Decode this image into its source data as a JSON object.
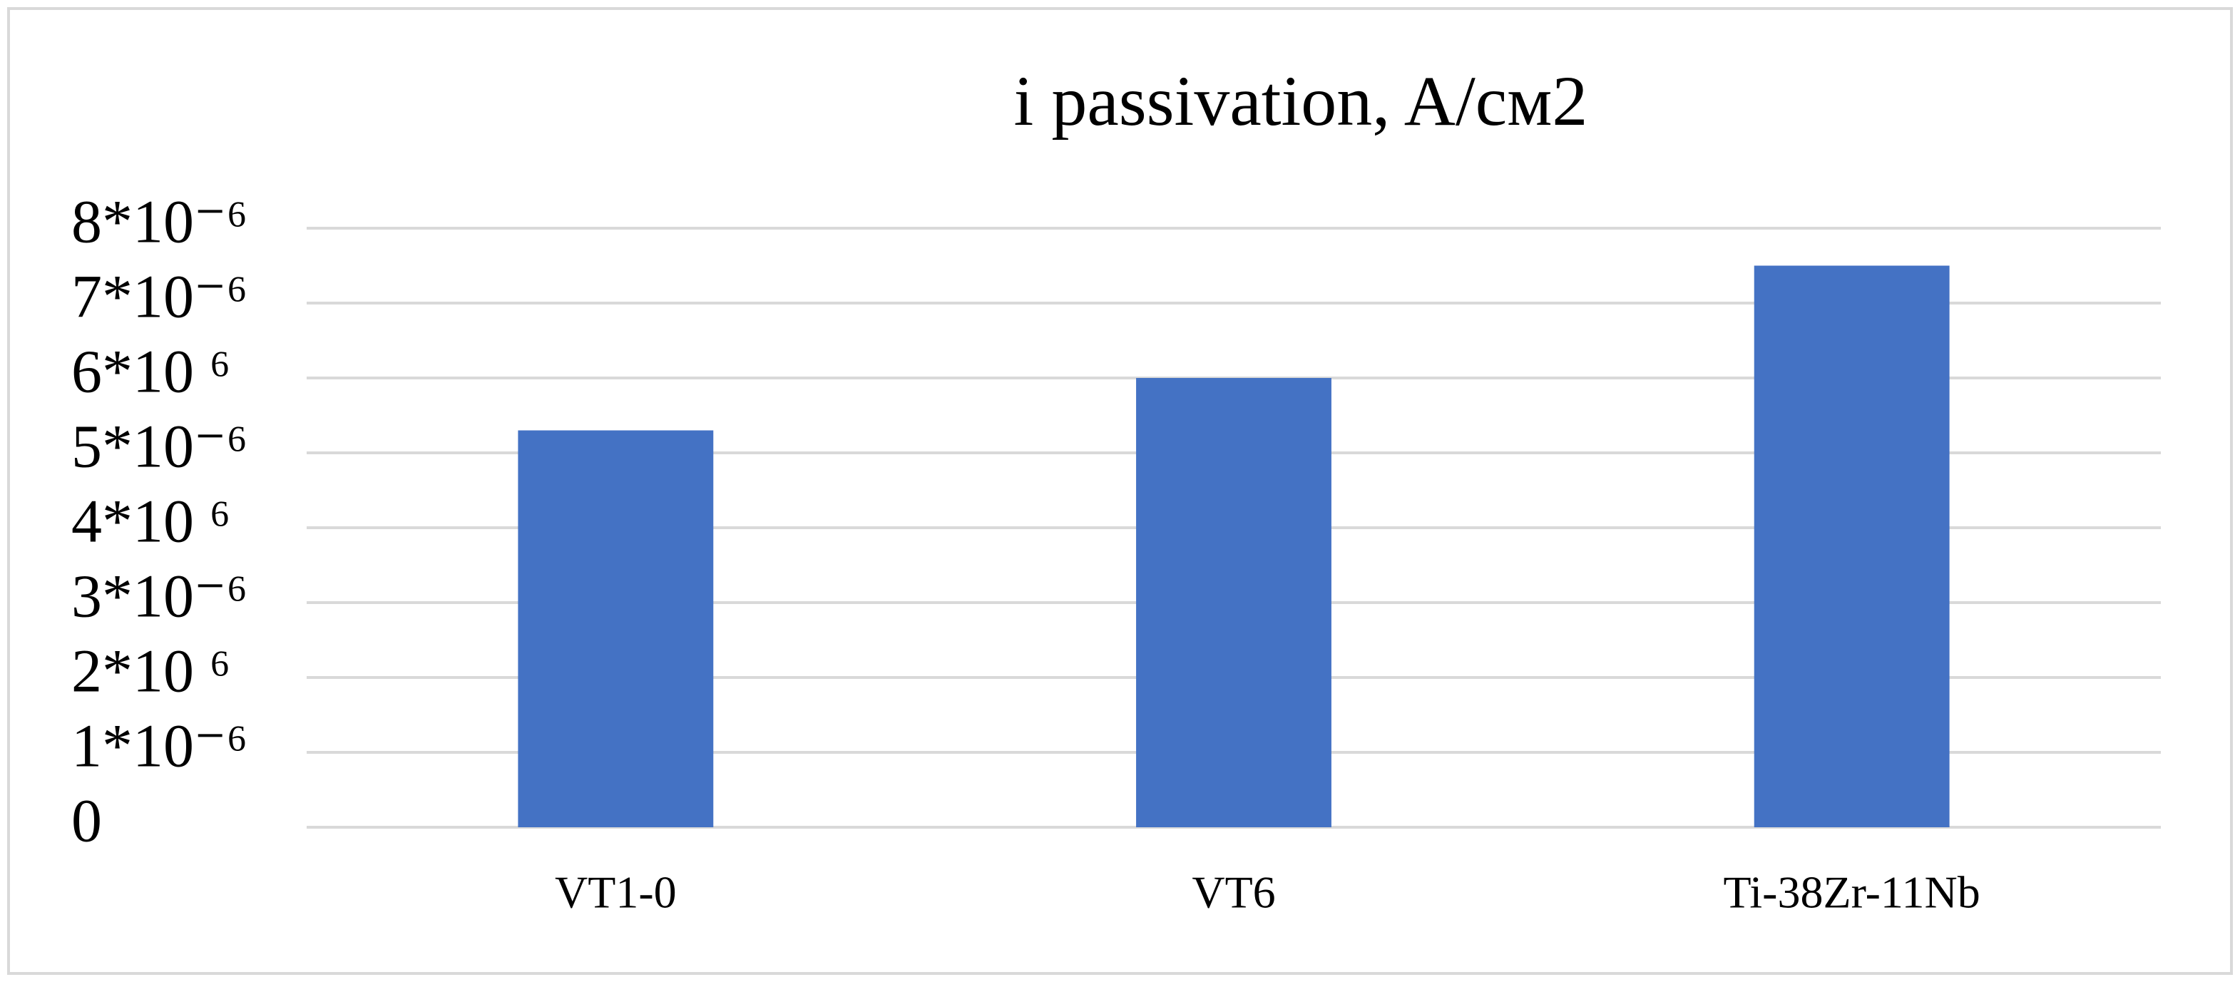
{
  "chart_data": {
    "type": "bar",
    "title": "i passivation, A/см2",
    "categories": [
      "VT1-0",
      "VT6",
      "Ti-38Zr-11Nb"
    ],
    "values": [
      5.3e-06,
      6e-06,
      7.5e-06
    ],
    "color": "#4472c4",
    "ylim": [
      0,
      8e-06
    ],
    "yticks": [
      0,
      {
        "value": 1e-06,
        "label": "1*10⁻⁶"
      },
      {
        "value": 2e-06,
        "label": "2*10 ⁶"
      },
      {
        "value": 3e-06,
        "label": "3*10⁻⁶"
      },
      {
        "value": 4e-06,
        "label": "4*10 ⁶"
      },
      {
        "value": 5e-06,
        "label": "5*10⁻⁶"
      },
      {
        "value": 6e-06,
        "label": "6*10 ⁶"
      },
      {
        "value": 7e-06,
        "label": "7*10⁻⁶"
      },
      {
        "value": 8e-06,
        "label": "8*10⁻⁶"
      }
    ],
    "grid": true
  }
}
